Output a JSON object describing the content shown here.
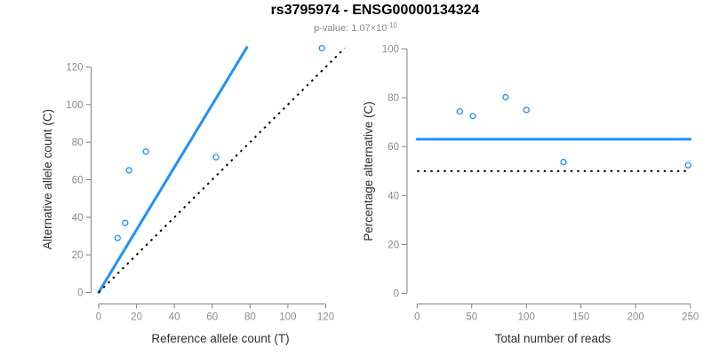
{
  "header": {
    "title": "rs3795974 - ENSG00000134324",
    "subtitle_prefix": "p-value: 1.07×10",
    "subtitle_exponent": "-10"
  },
  "colors": {
    "accent_blue": "#1E90FF",
    "dotted_black": "#000000",
    "axis_gray": "#808080",
    "tick_label_gray": "#8a8a8a",
    "axis_label_dark": "#303030"
  },
  "chart_data": [
    {
      "type": "scatter",
      "name": "allele-counts-panel",
      "xlabel": "Reference allele count (T)",
      "ylabel": "Alternative allele count (C)",
      "xlim": [
        0,
        120
      ],
      "ylim": [
        0,
        120
      ],
      "xticks": [
        0,
        20,
        40,
        60,
        80,
        100,
        120
      ],
      "yticks": [
        0,
        20,
        40,
        60,
        80,
        100,
        120
      ],
      "grid": false,
      "points": [
        [
          10,
          29
        ],
        [
          14,
          37
        ],
        [
          16,
          65
        ],
        [
          25,
          75
        ],
        [
          62,
          72
        ],
        [
          118,
          130
        ]
      ],
      "lines": [
        {
          "name": "fit-line",
          "style": "solid",
          "color_key": "accent_blue",
          "from": [
            0,
            0
          ],
          "to": [
            78.3,
            130.4
          ]
        },
        {
          "name": "identity-line",
          "style": "dotted",
          "color_key": "dotted_black",
          "from": [
            0,
            0
          ],
          "to": [
            130,
            130
          ]
        }
      ]
    },
    {
      "type": "scatter",
      "name": "percentage-panel",
      "xlabel": "Total number of reads",
      "ylabel": "Percentage alternative (C)",
      "xlim": [
        0,
        250
      ],
      "ylim": [
        0,
        100
      ],
      "xticks": [
        0,
        50,
        100,
        150,
        200,
        250
      ],
      "yticks": [
        0,
        20,
        40,
        60,
        80,
        100
      ],
      "grid": false,
      "points": [
        [
          39,
          74.4
        ],
        [
          51,
          72.5
        ],
        [
          81,
          80.2
        ],
        [
          100,
          75
        ],
        [
          134,
          53.7
        ],
        [
          248,
          52.4
        ]
      ],
      "lines": [
        {
          "name": "mean-percentage-line",
          "style": "solid",
          "color_key": "accent_blue",
          "hline": 63
        },
        {
          "name": "null-50-percent-line",
          "style": "dotted",
          "color_key": "dotted_black",
          "hline": 50
        }
      ]
    }
  ]
}
